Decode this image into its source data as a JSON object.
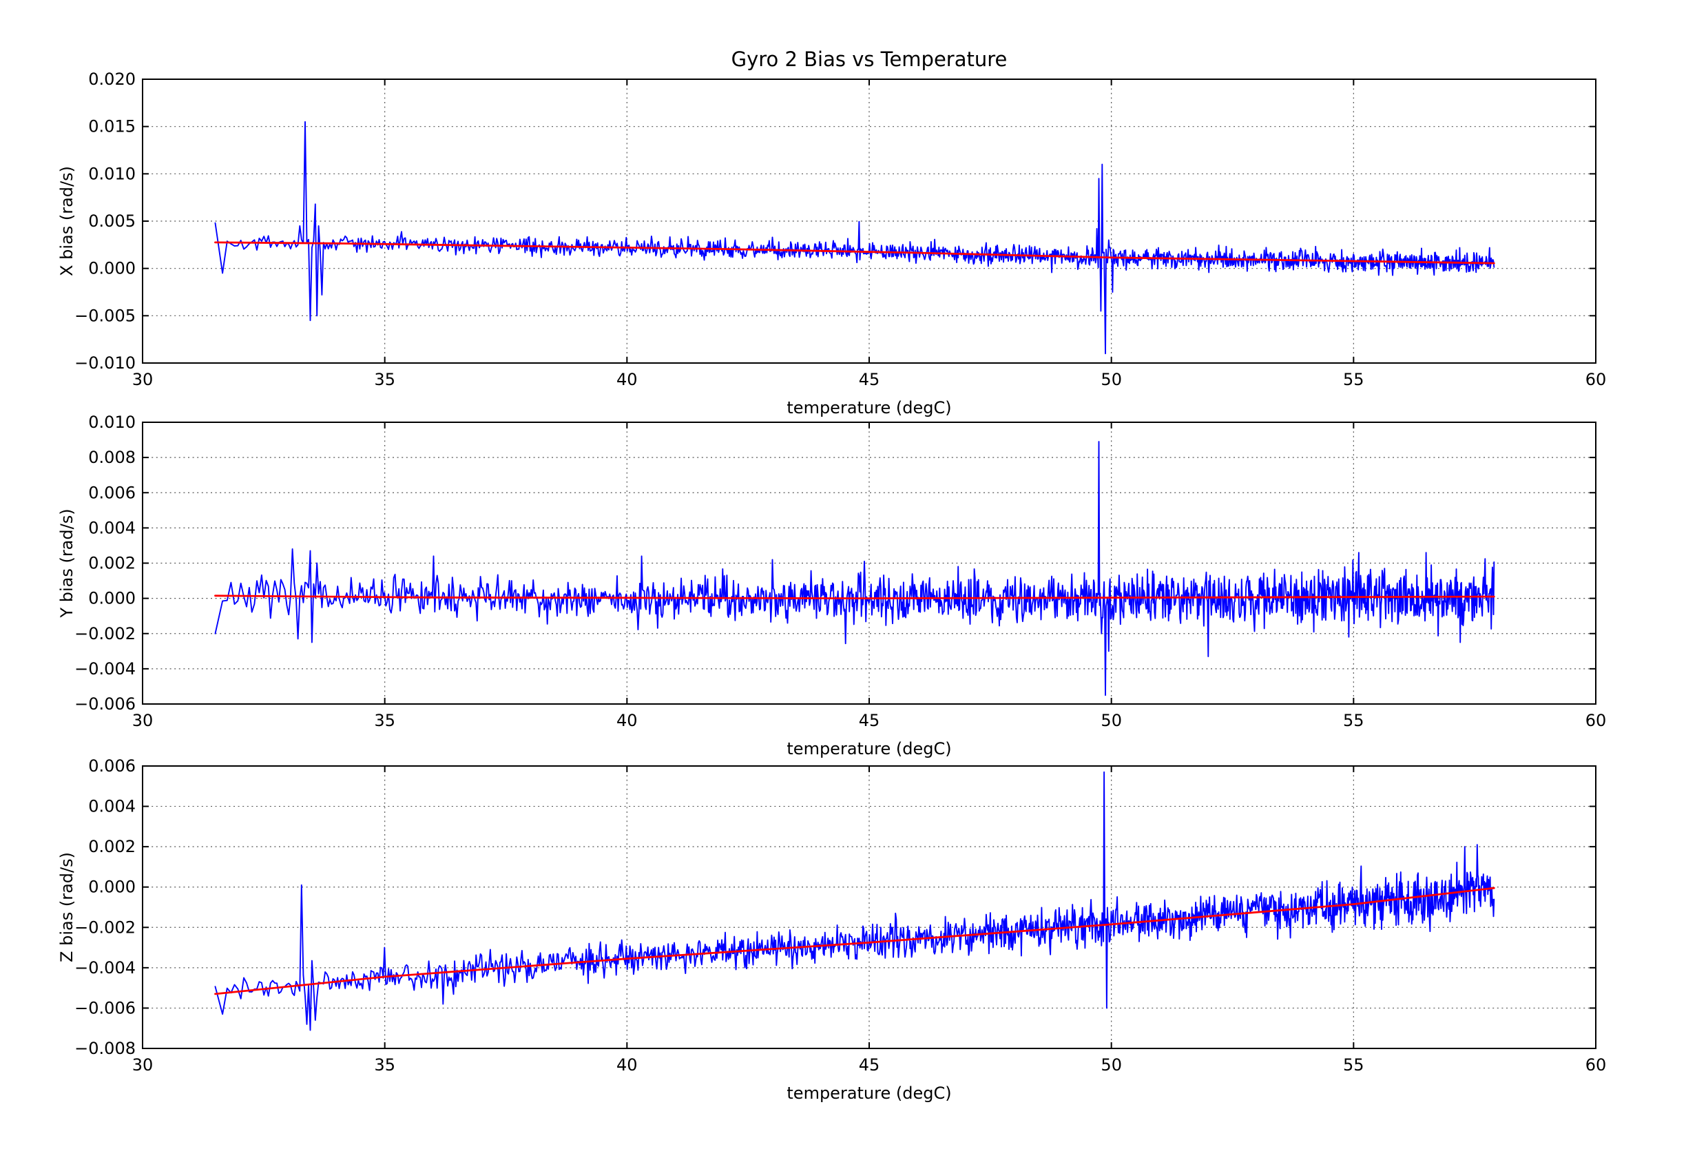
{
  "figure": {
    "title": "Gyro 2 Bias vs Temperature",
    "background": "#ffffff"
  },
  "style": {
    "data_color": "#0000ff",
    "fit_color": "#ff0000",
    "grid_color": "#555555",
    "frame_color": "#000000"
  },
  "chart_data": [
    {
      "type": "line",
      "id": "x-bias",
      "ylabel": "X bias (rad/s)",
      "xlabel": "temperature (degC)",
      "xlim": [
        30,
        60
      ],
      "ylim": [
        -0.01,
        0.02
      ],
      "xticks": [
        30,
        35,
        40,
        45,
        50,
        55,
        60
      ],
      "xticklabels": [
        "30",
        "35",
        "40",
        "45",
        "50",
        "55",
        "60"
      ],
      "yticks": [
        0.02,
        0.015,
        0.01,
        0.005,
        0.0,
        -0.005,
        -0.01
      ],
      "yticklabels": [
        "0.020",
        "0.015",
        "0.010",
        "0.005",
        "0.000",
        "−0.005",
        "−0.010"
      ],
      "grid": true,
      "legend": "none",
      "series": [
        {
          "name": "raw-bias",
          "color": "#0000ff",
          "x_range": [
            31.5,
            57.9
          ],
          "points": 1600,
          "x_warp": 0.7,
          "seed": 42,
          "noise_sigma": [
            0.0006,
            0.0008
          ],
          "outlier_prob": 0.015,
          "outlier_scale": 1.8,
          "trend": [
            [
              31.5,
              0.00275
            ],
            [
              34,
              0.00265
            ],
            [
              38,
              0.00235
            ],
            [
              42,
              0.00205
            ],
            [
              46,
              0.00165
            ],
            [
              50,
              0.00115
            ],
            [
              54,
              0.00085
            ],
            [
              57.9,
              0.00055
            ]
          ],
          "spikes": [
            [
              31.55,
              0.0048
            ],
            [
              31.65,
              -0.0005
            ],
            [
              33.25,
              0.0045
            ],
            [
              33.35,
              0.0155
            ],
            [
              33.45,
              -0.0055
            ],
            [
              33.5,
              0.0022
            ],
            [
              33.55,
              0.0068
            ],
            [
              33.6,
              -0.005
            ],
            [
              33.65,
              0.0045
            ],
            [
              33.7,
              -0.0028
            ],
            [
              44.8,
              0.00495
            ],
            [
              49.7,
              0.0042
            ],
            [
              49.74,
              0.0095
            ],
            [
              49.78,
              -0.0045
            ],
            [
              49.81,
              0.011
            ],
            [
              49.86,
              -0.0035
            ],
            [
              49.88,
              -0.009
            ],
            [
              49.95,
              0.003
            ],
            [
              50.02,
              -0.0025
            ]
          ]
        },
        {
          "name": "linear-fit",
          "color": "#ff0000",
          "points_xy": [
            [
              31.5,
              0.00275
            ],
            [
              34,
              0.00265
            ],
            [
              38,
              0.00235
            ],
            [
              42,
              0.00205
            ],
            [
              46,
              0.00165
            ],
            [
              50,
              0.00115
            ],
            [
              54,
              0.00085
            ],
            [
              57.9,
              0.00055
            ]
          ]
        }
      ]
    },
    {
      "type": "line",
      "id": "y-bias",
      "ylabel": "Y bias (rad/s)",
      "xlabel": "temperature (degC)",
      "xlim": [
        30,
        60
      ],
      "ylim": [
        -0.006,
        0.01
      ],
      "xticks": [
        30,
        35,
        40,
        45,
        50,
        55,
        60
      ],
      "xticklabels": [
        "30",
        "35",
        "40",
        "45",
        "50",
        "55",
        "60"
      ],
      "yticks": [
        0.01,
        0.008,
        0.006,
        0.004,
        0.002,
        0.0,
        -0.002,
        -0.004,
        -0.006
      ],
      "yticklabels": [
        "0.010",
        "0.008",
        "0.006",
        "0.004",
        "0.002",
        "0.000",
        "−0.002",
        "−0.004",
        "−0.006"
      ],
      "grid": true,
      "legend": "none",
      "series": [
        {
          "name": "raw-bias",
          "color": "#0000ff",
          "x_range": [
            31.5,
            57.9
          ],
          "points": 1600,
          "x_warp": 0.7,
          "seed": 7,
          "noise_sigma": [
            0.0007,
            0.0012
          ],
          "outlier_prob": 0.02,
          "outlier_scale": 1.6,
          "trend": [
            [
              31.5,
              0.00015
            ],
            [
              36,
              5e-05
            ],
            [
              45,
              0.0
            ],
            [
              57.9,
              0.0001
            ]
          ],
          "spikes": [
            [
              31.55,
              -0.002
            ],
            [
              31.8,
              0.0009
            ],
            [
              33.1,
              0.0028
            ],
            [
              33.2,
              -0.0023
            ],
            [
              33.45,
              0.0027
            ],
            [
              33.5,
              -0.0025
            ],
            [
              33.6,
              0.002
            ],
            [
              36.0,
              0.0024
            ],
            [
              40.3,
              0.0024
            ],
            [
              43.0,
              0.0022
            ],
            [
              44.9,
              0.0021
            ],
            [
              49.74,
              0.0089
            ],
            [
              49.8,
              -0.002
            ],
            [
              49.88,
              -0.0055
            ],
            [
              49.95,
              -0.003
            ],
            [
              52.0,
              -0.0033
            ],
            [
              56.5,
              0.0026
            ],
            [
              57.2,
              -0.0025
            ]
          ]
        },
        {
          "name": "linear-fit",
          "color": "#ff0000",
          "points_xy": [
            [
              31.5,
              0.00015
            ],
            [
              36,
              5e-05
            ],
            [
              45,
              0.0
            ],
            [
              57.9,
              0.0001
            ]
          ]
        }
      ]
    },
    {
      "type": "line",
      "id": "z-bias",
      "ylabel": "Z bias (rad/s)",
      "xlabel": "temperature (degC)",
      "xlim": [
        30,
        60
      ],
      "ylim": [
        -0.008,
        0.006
      ],
      "xticks": [
        30,
        35,
        40,
        45,
        50,
        55,
        60
      ],
      "xticklabels": [
        "30",
        "35",
        "40",
        "45",
        "50",
        "55",
        "60"
      ],
      "yticks": [
        0.006,
        0.004,
        0.002,
        0.0,
        -0.002,
        -0.004,
        -0.006,
        -0.008
      ],
      "yticklabels": [
        "0.006",
        "0.004",
        "0.002",
        "0.000",
        "−0.002",
        "−0.004",
        "−0.006",
        "−0.008"
      ],
      "grid": true,
      "legend": "none",
      "series": [
        {
          "name": "raw-bias",
          "color": "#0000ff",
          "x_range": [
            31.5,
            57.9
          ],
          "points": 1600,
          "x_warp": 0.7,
          "seed": 1234,
          "noise_sigma": [
            0.00045,
            0.00085
          ],
          "outlier_prob": 0.02,
          "outlier_scale": 1.7,
          "trend": [
            [
              31.5,
              -0.0053
            ],
            [
              35,
              -0.00445
            ],
            [
              40,
              -0.00355
            ],
            [
              45,
              -0.00275
            ],
            [
              50,
              -0.00185
            ],
            [
              55,
              -0.00085
            ],
            [
              57.9,
              -5e-05
            ]
          ],
          "spikes": [
            [
              31.7,
              -0.0063
            ],
            [
              32.1,
              -0.0045
            ],
            [
              33.3,
              0.0001
            ],
            [
              33.38,
              -0.0068
            ],
            [
              33.45,
              -0.0071
            ],
            [
              33.55,
              -0.0066
            ],
            [
              35.0,
              -0.003
            ],
            [
              36.2,
              -0.0058
            ],
            [
              49.85,
              0.0057
            ],
            [
              49.9,
              -0.006
            ],
            [
              57.3,
              0.002
            ],
            [
              57.55,
              0.0021
            ]
          ]
        },
        {
          "name": "linear-fit",
          "color": "#ff0000",
          "points_xy": [
            [
              31.5,
              -0.0053
            ],
            [
              35,
              -0.00445
            ],
            [
              40,
              -0.00355
            ],
            [
              45,
              -0.00275
            ],
            [
              50,
              -0.00185
            ],
            [
              55,
              -0.00085
            ],
            [
              57.9,
              -5e-05
            ]
          ]
        }
      ]
    }
  ]
}
